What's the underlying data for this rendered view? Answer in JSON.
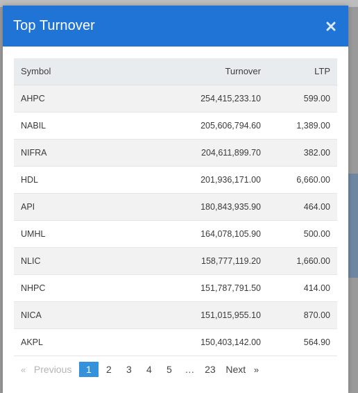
{
  "modal": {
    "title": "Top Turnover"
  },
  "table": {
    "columns": [
      "Symbol",
      "Turnover",
      "LTP"
    ],
    "rows": [
      [
        "AHPC",
        "254,415,233.10",
        "599.00"
      ],
      [
        "NABIL",
        "205,606,794.60",
        "1,389.00"
      ],
      [
        "NIFRA",
        "204,611,899.70",
        "382.00"
      ],
      [
        "HDL",
        "201,936,171.00",
        "6,660.00"
      ],
      [
        "API",
        "180,843,935.90",
        "464.00"
      ],
      [
        "UMHL",
        "164,078,105.90",
        "500.00"
      ],
      [
        "NLIC",
        "158,777,119.20",
        "1,660.00"
      ],
      [
        "NHPC",
        "151,787,791.50",
        "414.00"
      ],
      [
        "NICA",
        "151,015,955.10",
        "870.00"
      ],
      [
        "AKPL",
        "150,403,142.00",
        "564.90"
      ]
    ]
  },
  "pagination": {
    "prev_label": "Previous",
    "next_label": "Next",
    "prev_arrow": "«",
    "next_arrow": "»",
    "pages": [
      "1",
      "2",
      "3",
      "4",
      "5"
    ],
    "ellipsis": "…",
    "last_page": "23",
    "current_page": "1"
  },
  "colors": {
    "header_bg": "#1f74d6",
    "active_page": "#3392db"
  }
}
